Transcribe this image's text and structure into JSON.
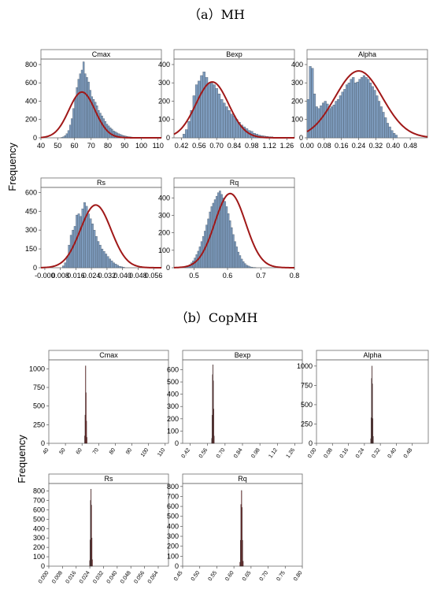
{
  "sections": [
    {
      "label": "（a）MH",
      "ylabel": "Frequency"
    },
    {
      "label": "（b）CopMH",
      "ylabel": "Frequency"
    }
  ],
  "colors": {
    "bar_fill_mh": "#7d9bbd",
    "bar_stroke": "#3b4652",
    "bar_fill_copmh": "#b03030",
    "curve": "#a01818",
    "title_bg": "#ffffff",
    "frame": "#6b6b6b"
  },
  "chart_data": [
    {
      "type": "bar",
      "section": "MH",
      "title": "Cmax",
      "xlim": [
        40,
        112
      ],
      "ylim": [
        0,
        860
      ],
      "xticks": [
        "40",
        "50",
        "60",
        "70",
        "80",
        "90",
        "100",
        "110"
      ],
      "yticks": [
        "0",
        "200",
        "400",
        "600",
        "800"
      ],
      "bin_start": 52,
      "bin_width": 1,
      "values": [
        5,
        12,
        25,
        45,
        80,
        140,
        210,
        320,
        430,
        550,
        640,
        700,
        740,
        830,
        700,
        660,
        610,
        520,
        450,
        420,
        390,
        350,
        300,
        270,
        240,
        210,
        180,
        150,
        130,
        110,
        95,
        75,
        65,
        55,
        45,
        38,
        30,
        24,
        20,
        16,
        12,
        10,
        8,
        6,
        5,
        4,
        3,
        2,
        2,
        1,
        1,
        1,
        1
      ],
      "curve": {
        "mean": 64.5,
        "sd": 7.8,
        "peak": 500
      }
    },
    {
      "type": "bar",
      "section": "MH",
      "title": "Bexp",
      "xlim": [
        0.36,
        1.32
      ],
      "ylim": [
        0,
        430
      ],
      "xticks": [
        "0.42",
        "0.56",
        "0.70",
        "0.84",
        "0.98",
        "1.12",
        "1.26"
      ],
      "yticks": [
        "0",
        "100",
        "200",
        "300",
        "400"
      ],
      "bin_start": 0.43,
      "bin_width": 0.02,
      "values": [
        20,
        45,
        90,
        150,
        230,
        290,
        310,
        340,
        360,
        330,
        300,
        300,
        290,
        270,
        240,
        210,
        190,
        170,
        150,
        130,
        120,
        100,
        85,
        70,
        60,
        50,
        40,
        35,
        25,
        20,
        15,
        12,
        10,
        8,
        6,
        5
      ],
      "curve": {
        "mean": 0.665,
        "sd": 0.13,
        "peak": 305
      }
    },
    {
      "type": "bar",
      "section": "MH",
      "title": "Alpha",
      "xlim": [
        0.0,
        0.56
      ],
      "ylim": [
        0,
        430
      ],
      "xticks": [
        "0.00",
        "0.08",
        "0.16",
        "0.24",
        "0.32",
        "0.40",
        "0.48"
      ],
      "yticks": [
        "0",
        "100",
        "200",
        "300",
        "400"
      ],
      "bin_start": 0.0,
      "bin_width": 0.01,
      "values": [
        210,
        390,
        380,
        240,
        170,
        160,
        175,
        190,
        200,
        185,
        160,
        170,
        180,
        200,
        210,
        230,
        250,
        265,
        290,
        300,
        320,
        330,
        300,
        305,
        320,
        330,
        340,
        330,
        320,
        300,
        280,
        260,
        230,
        200,
        170,
        140,
        110,
        80,
        60,
        40,
        25,
        15
      ],
      "curve": {
        "mean": 0.24,
        "sd": 0.11,
        "peak": 365
      }
    },
    {
      "type": "bar",
      "section": "MH",
      "title": "Rs",
      "xlim": [
        -0.002,
        0.06
      ],
      "ylim": [
        0,
        640
      ],
      "xticks": [
        "-0.000",
        "0.008",
        "0.016",
        "0.024",
        "0.032",
        "0.040",
        "0.048",
        "0.056"
      ],
      "yticks": [
        "0",
        "150",
        "300",
        "450",
        "600"
      ],
      "bin_start": 0.009,
      "bin_width": 0.001,
      "values": [
        15,
        40,
        90,
        180,
        260,
        300,
        330,
        420,
        430,
        410,
        470,
        520,
        490,
        430,
        390,
        350,
        300,
        250,
        210,
        180,
        150,
        130,
        110,
        90,
        70,
        55,
        40,
        30,
        20,
        12,
        8,
        5
      ],
      "curve": {
        "mean": 0.0262,
        "sd": 0.0079,
        "peak": 500
      }
    },
    {
      "type": "bar",
      "section": "MH",
      "title": "Rq",
      "xlim": [
        0.44,
        0.8
      ],
      "ylim": [
        0,
        460
      ],
      "xticks": [
        "0.5",
        "0.6",
        "0.7",
        "0.8"
      ],
      "yticks": [
        "0",
        "100",
        "200",
        "300",
        "400"
      ],
      "bin_start": 0.47,
      "bin_width": 0.005,
      "values": [
        3,
        6,
        10,
        18,
        28,
        40,
        56,
        75,
        95,
        120,
        150,
        180,
        210,
        245,
        280,
        320,
        350,
        370,
        390,
        410,
        430,
        440,
        420,
        400,
        380,
        350,
        310,
        270,
        230,
        190,
        150,
        120,
        90,
        70,
        50,
        35,
        24,
        15,
        10,
        6,
        4,
        2,
        1
      ],
      "curve": {
        "mean": 0.608,
        "sd": 0.046,
        "peak": 425
      }
    },
    {
      "type": "bar",
      "section": "CopMH",
      "title": "Cmax",
      "xlim": [
        40,
        112
      ],
      "ylim": [
        0,
        1120
      ],
      "xticks": [
        "40",
        "50",
        "60",
        "70",
        "80",
        "90",
        "100",
        "110"
      ],
      "yticks": [
        "0",
        "250",
        "500",
        "750",
        "1000"
      ],
      "bin_start": 61.5,
      "bin_width": 0.25,
      "values": [
        100,
        380,
        1040,
        680,
        300,
        80
      ]
    },
    {
      "type": "bar",
      "section": "CopMH",
      "title": "Bexp",
      "xlim": [
        0.36,
        1.32
      ],
      "ylim": [
        0,
        680
      ],
      "xticks": [
        "0.42",
        "0.56",
        "0.70",
        "0.84",
        "0.98",
        "1.12",
        "1.26"
      ],
      "yticks": [
        "0",
        "100",
        "200",
        "300",
        "400",
        "500",
        "600"
      ],
      "bin_start": 0.592,
      "bin_width": 0.003,
      "values": [
        40,
        230,
        560,
        640,
        510,
        280,
        60
      ]
    },
    {
      "type": "bar",
      "section": "CopMH",
      "title": "Alpha",
      "xlim": [
        0.0,
        0.56
      ],
      "ylim": [
        0,
        1080
      ],
      "xticks": [
        "0.00",
        "0.08",
        "0.16",
        "0.24",
        "0.32",
        "0.40",
        "0.48"
      ],
      "yticks": [
        "0",
        "250",
        "500",
        "750",
        "1000"
      ],
      "bin_start": 0.271,
      "bin_width": 0.002,
      "values": [
        60,
        330,
        840,
        1000,
        770,
        320,
        90
      ]
    },
    {
      "type": "bar",
      "section": "CopMH",
      "title": "Rs",
      "xlim": [
        0.0,
        0.07
      ],
      "ylim": [
        0,
        880
      ],
      "xticks": [
        "0.000",
        "0.008",
        "0.016",
        "0.024",
        "0.032",
        "0.040",
        "0.048",
        "0.056",
        "0.064"
      ],
      "yticks": [
        "0",
        "100",
        "200",
        "300",
        "400",
        "500",
        "600",
        "700",
        "800"
      ],
      "bin_start": 0.0238,
      "bin_width": 0.00025,
      "values": [
        60,
        280,
        700,
        820,
        650,
        300,
        70
      ]
    },
    {
      "type": "bar",
      "section": "CopMH",
      "title": "Rq",
      "xlim": [
        0.45,
        0.8
      ],
      "ylim": [
        0,
        830
      ],
      "xticks": [
        "0.45",
        "0.50",
        "0.55",
        "0.60",
        "0.65",
        "0.70",
        "0.75",
        "0.80"
      ],
      "yticks": [
        "0",
        "100",
        "200",
        "300",
        "400",
        "500",
        "600",
        "700",
        "800"
      ],
      "bin_start": 0.617,
      "bin_width": 0.0015,
      "values": [
        40,
        260,
        620,
        760,
        590,
        260,
        50
      ]
    }
  ]
}
